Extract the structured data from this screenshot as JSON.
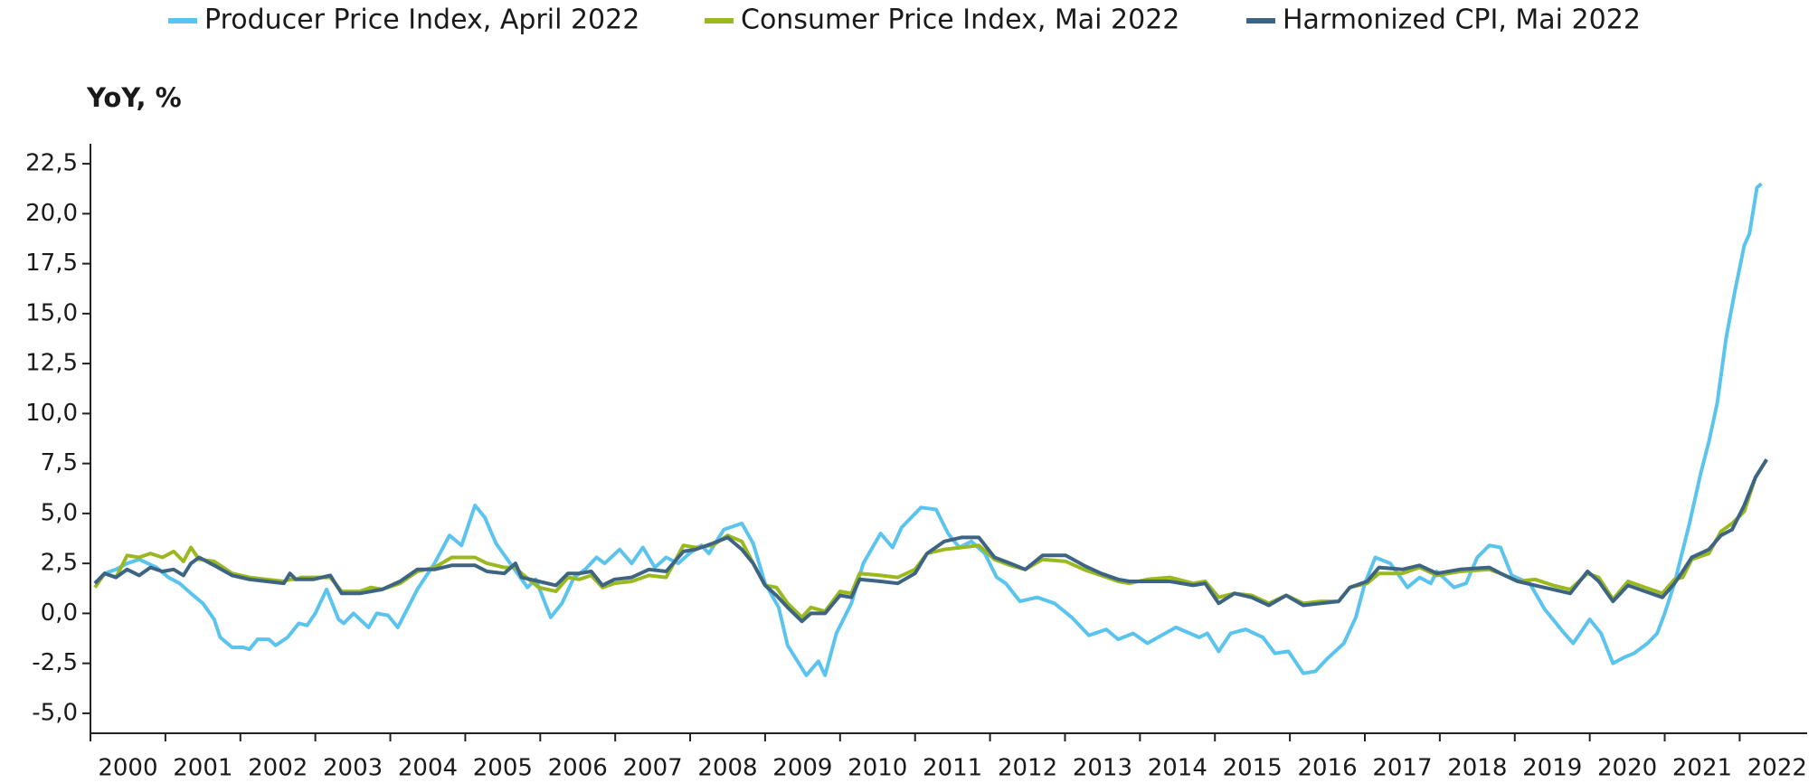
{
  "chart_data": {
    "type": "line",
    "y_axis_label": "YoY, %",
    "categories": [
      "2000",
      "2001",
      "2002",
      "2003",
      "2004",
      "2005",
      "2006",
      "2007",
      "2008",
      "2009",
      "2010",
      "2011",
      "2012",
      "2013",
      "2014",
      "2015",
      "2016",
      "2017",
      "2018",
      "2019",
      "2020",
      "2021",
      "2022"
    ],
    "xlim": [
      2000,
      2022.9
    ],
    "xticks": [
      2000,
      2001,
      2002,
      2003,
      2004,
      2005,
      2006,
      2007,
      2008,
      2009,
      2010,
      2011,
      2012,
      2013,
      2014,
      2015,
      2016,
      2017,
      2018,
      2019,
      2020,
      2021,
      2022
    ],
    "ylim": [
      -6,
      23.5
    ],
    "yticks": [
      {
        "value": -5,
        "label": "-5,0"
      },
      {
        "value": -2.5,
        "label": "-2,5"
      },
      {
        "value": 0,
        "label": "0,0"
      },
      {
        "value": 2.5,
        "label": "2,5"
      },
      {
        "value": 5,
        "label": "5,0"
      },
      {
        "value": 7.5,
        "label": "7,5"
      },
      {
        "value": 10,
        "label": "10,0"
      },
      {
        "value": 12.5,
        "label": "12,5"
      },
      {
        "value": 15,
        "label": "15,0"
      },
      {
        "value": 17.5,
        "label": "17,5"
      },
      {
        "value": 20,
        "label": "20,0"
      },
      {
        "value": 22.5,
        "label": "22,5"
      }
    ],
    "legend": "top",
    "series": [
      {
        "name": "Producer Price Index, April 2022",
        "color": "#5bc4ee",
        "x": [
          2000.06,
          2000.19,
          2000.34,
          2000.49,
          2000.65,
          2000.88,
          2001.04,
          2001.19,
          2001.34,
          2001.5,
          2001.65,
          2001.73,
          2001.89,
          2002.04,
          2002.12,
          2002.23,
          2002.38,
          2002.47,
          2002.63,
          2002.78,
          2002.89,
          2003.0,
          2003.15,
          2003.31,
          2003.38,
          2003.51,
          2003.71,
          2003.82,
          2003.97,
          2004.1,
          2004.36,
          2004.59,
          2004.79,
          2004.95,
          2005.13,
          2005.26,
          2005.41,
          2005.6,
          2005.83,
          2005.94,
          2006.14,
          2006.29,
          2006.45,
          2006.6,
          2006.75,
          2006.86,
          2007.06,
          2007.22,
          2007.37,
          2007.53,
          2007.68,
          2007.84,
          2007.99,
          2008.15,
          2008.25,
          2008.45,
          2008.69,
          2008.84,
          2009.0,
          2009.18,
          2009.3,
          2009.55,
          2009.71,
          2009.8,
          2009.95,
          2010.15,
          2010.31,
          2010.54,
          2010.7,
          2010.82,
          2011.08,
          2011.28,
          2011.44,
          2011.59,
          2011.75,
          2011.93,
          2012.09,
          2012.21,
          2012.4,
          2012.63,
          2012.86,
          2013.09,
          2013.32,
          2013.55,
          2013.71,
          2013.91,
          2014.1,
          2014.48,
          2014.79,
          2014.9,
          2015.05,
          2015.21,
          2015.41,
          2015.64,
          2015.8,
          2015.98,
          2016.18,
          2016.34,
          2016.49,
          2016.72,
          2016.88,
          2017.0,
          2017.14,
          2017.34,
          2017.57,
          2017.73,
          2017.88,
          2017.96,
          2018.19,
          2018.35,
          2018.5,
          2018.66,
          2018.81,
          2018.96,
          2019.2,
          2019.4,
          2019.51,
          2019.66,
          2019.78,
          2020.0,
          2020.15,
          2020.31,
          2020.46,
          2020.59,
          2020.77,
          2020.9,
          2021.0,
          2021.13,
          2021.33,
          2021.48,
          2021.59,
          2021.7,
          2021.82,
          2021.93,
          2022.06,
          2022.13,
          2022.23,
          2022.29
        ],
        "values": [
          1.5,
          2.0,
          2.2,
          2.5,
          2.7,
          2.3,
          1.8,
          1.5,
          1.0,
          0.5,
          -0.3,
          -1.2,
          -1.7,
          -1.7,
          -1.8,
          -1.3,
          -1.3,
          -1.6,
          -1.2,
          -0.5,
          -0.6,
          0.0,
          1.2,
          -0.3,
          -0.5,
          0.0,
          -0.7,
          0.0,
          -0.1,
          -0.7,
          1.2,
          2.5,
          3.9,
          3.4,
          5.4,
          4.8,
          3.5,
          2.5,
          1.3,
          1.7,
          -0.2,
          0.5,
          1.8,
          2.2,
          2.8,
          2.5,
          3.2,
          2.5,
          3.3,
          2.3,
          2.8,
          2.5,
          3.0,
          3.4,
          3.0,
          4.2,
          4.5,
          3.5,
          1.5,
          0.3,
          -1.6,
          -3.1,
          -2.4,
          -3.1,
          -1.0,
          0.5,
          2.5,
          4.0,
          3.3,
          4.3,
          5.3,
          5.2,
          4.0,
          3.3,
          3.6,
          3.0,
          1.8,
          1.5,
          0.6,
          0.8,
          0.5,
          -0.2,
          -1.1,
          -0.8,
          -1.3,
          -1.0,
          -1.5,
          -0.7,
          -1.2,
          -1.0,
          -1.9,
          -1.0,
          -0.8,
          -1.2,
          -2.0,
          -1.9,
          -3.0,
          -2.9,
          -2.3,
          -1.5,
          -0.2,
          1.5,
          2.8,
          2.5,
          1.3,
          1.8,
          1.5,
          2.1,
          1.3,
          1.5,
          2.8,
          3.4,
          3.3,
          1.9,
          1.5,
          0.2,
          -0.3,
          -1.0,
          -1.5,
          -0.3,
          -1.0,
          -2.5,
          -2.2,
          -2.0,
          -1.5,
          -1.0,
          0.0,
          1.5,
          4.5,
          7.0,
          8.6,
          10.5,
          13.8,
          16.0,
          18.4,
          19.0,
          21.3,
          21.5
        ]
      },
      {
        "name": "Consumer Price Index, Mai 2022",
        "color": "#9ab91f",
        "x": [
          2000.06,
          2000.19,
          2000.34,
          2000.49,
          2000.65,
          2000.8,
          2000.96,
          2001.11,
          2001.24,
          2001.34,
          2001.45,
          2001.65,
          2001.89,
          2002.12,
          2002.35,
          2002.58,
          2002.66,
          2002.74,
          2002.81,
          2002.97,
          2003.2,
          2003.35,
          2003.59,
          2003.74,
          2003.89,
          2004.13,
          2004.36,
          2004.59,
          2004.82,
          2005.13,
          2005.29,
          2005.52,
          2005.67,
          2005.75,
          2005.98,
          2006.21,
          2006.37,
          2006.52,
          2006.68,
          2006.83,
          2006.99,
          2007.22,
          2007.45,
          2007.68,
          2007.91,
          2008.07,
          2008.3,
          2008.5,
          2008.69,
          2008.84,
          2009.0,
          2009.15,
          2009.3,
          2009.49,
          2009.61,
          2009.8,
          2010.0,
          2010.15,
          2010.26,
          2010.54,
          2010.77,
          2011.0,
          2011.16,
          2011.39,
          2011.62,
          2011.85,
          2012.06,
          2012.27,
          2012.47,
          2012.7,
          2013.01,
          2013.25,
          2013.48,
          2013.71,
          2013.86,
          2014.1,
          2014.4,
          2014.71,
          2014.87,
          2015.05,
          2015.26,
          2015.49,
          2015.72,
          2015.95,
          2016.18,
          2016.41,
          2016.65,
          2016.8,
          2017.03,
          2017.19,
          2017.5,
          2017.73,
          2017.96,
          2018.27,
          2018.66,
          2018.81,
          2019.04,
          2019.27,
          2019.51,
          2019.74,
          2019.97,
          2020.12,
          2020.31,
          2020.51,
          2020.74,
          2020.97,
          2021.13,
          2021.24,
          2021.36,
          2021.59,
          2021.75,
          2021.9,
          2022.06,
          2022.21,
          2022.36
        ],
        "values": [
          1.3,
          2.0,
          1.8,
          2.9,
          2.8,
          3.0,
          2.8,
          3.1,
          2.6,
          3.3,
          2.7,
          2.6,
          2.0,
          1.8,
          1.7,
          1.6,
          1.7,
          1.7,
          1.8,
          1.8,
          1.8,
          1.1,
          1.1,
          1.3,
          1.2,
          1.5,
          2.1,
          2.3,
          2.8,
          2.8,
          2.5,
          2.3,
          2.3,
          2.0,
          1.3,
          1.1,
          1.8,
          1.7,
          1.9,
          1.3,
          1.5,
          1.6,
          1.9,
          1.8,
          3.4,
          3.3,
          3.4,
          3.9,
          3.6,
          2.5,
          1.4,
          1.3,
          0.5,
          -0.2,
          0.3,
          0.1,
          1.1,
          1.0,
          2.0,
          1.9,
          1.8,
          2.2,
          3.0,
          3.2,
          3.3,
          3.4,
          2.7,
          2.4,
          2.2,
          2.7,
          2.6,
          2.2,
          1.9,
          1.6,
          1.5,
          1.7,
          1.8,
          1.5,
          1.6,
          0.8,
          1.0,
          0.9,
          0.5,
          0.9,
          0.5,
          0.6,
          0.6,
          1.3,
          1.5,
          2.0,
          2.0,
          2.3,
          1.9,
          2.1,
          2.2,
          2.0,
          1.6,
          1.7,
          1.4,
          1.2,
          2.0,
          1.8,
          0.7,
          1.6,
          1.3,
          1.0,
          1.7,
          1.8,
          2.7,
          3.0,
          4.1,
          4.5,
          5.1,
          6.8,
          7.7
        ]
      },
      {
        "name": "Harmonized CPI, Mai 2022",
        "color": "#3d6483",
        "x": [
          2000.06,
          2000.19,
          2000.34,
          2000.49,
          2000.65,
          2000.8,
          2000.96,
          2001.11,
          2001.24,
          2001.34,
          2001.45,
          2001.65,
          2001.89,
          2002.12,
          2002.35,
          2002.58,
          2002.66,
          2002.74,
          2002.81,
          2002.97,
          2003.2,
          2003.35,
          2003.59,
          2003.74,
          2003.89,
          2004.13,
          2004.36,
          2004.59,
          2004.82,
          2005.13,
          2005.29,
          2005.52,
          2005.67,
          2005.75,
          2005.98,
          2006.21,
          2006.37,
          2006.52,
          2006.68,
          2006.83,
          2006.99,
          2007.22,
          2007.45,
          2007.68,
          2007.91,
          2008.07,
          2008.3,
          2008.5,
          2008.69,
          2008.84,
          2009.0,
          2009.15,
          2009.3,
          2009.49,
          2009.61,
          2009.8,
          2010.0,
          2010.15,
          2010.26,
          2010.54,
          2010.77,
          2011.0,
          2011.16,
          2011.39,
          2011.62,
          2011.85,
          2012.06,
          2012.27,
          2012.47,
          2012.7,
          2013.01,
          2013.25,
          2013.48,
          2013.71,
          2013.86,
          2014.1,
          2014.4,
          2014.71,
          2014.87,
          2015.05,
          2015.26,
          2015.49,
          2015.72,
          2015.95,
          2016.18,
          2016.41,
          2016.65,
          2016.8,
          2017.03,
          2017.19,
          2017.5,
          2017.73,
          2017.96,
          2018.27,
          2018.66,
          2018.81,
          2019.04,
          2019.27,
          2019.51,
          2019.74,
          2019.97,
          2020.12,
          2020.31,
          2020.51,
          2020.74,
          2020.97,
          2021.13,
          2021.24,
          2021.36,
          2021.59,
          2021.75,
          2021.9,
          2022.06,
          2022.21,
          2022.36
        ],
        "values": [
          1.5,
          2.0,
          1.8,
          2.2,
          1.9,
          2.3,
          2.1,
          2.2,
          1.9,
          2.5,
          2.8,
          2.4,
          1.9,
          1.7,
          1.6,
          1.5,
          2.0,
          1.7,
          1.7,
          1.7,
          1.9,
          1.0,
          1.0,
          1.1,
          1.2,
          1.6,
          2.2,
          2.2,
          2.4,
          2.4,
          2.1,
          2.0,
          2.5,
          1.8,
          1.6,
          1.4,
          2.0,
          2.0,
          2.1,
          1.4,
          1.7,
          1.8,
          2.2,
          2.1,
          3.1,
          3.2,
          3.5,
          3.8,
          3.2,
          2.5,
          1.4,
          0.9,
          0.3,
          -0.4,
          0.0,
          0.0,
          0.9,
          0.8,
          1.7,
          1.6,
          1.5,
          2.0,
          3.0,
          3.6,
          3.8,
          3.8,
          2.8,
          2.5,
          2.2,
          2.9,
          2.9,
          2.4,
          2.0,
          1.7,
          1.6,
          1.6,
          1.6,
          1.4,
          1.5,
          0.5,
          1.0,
          0.8,
          0.4,
          0.9,
          0.4,
          0.5,
          0.6,
          1.3,
          1.6,
          2.3,
          2.2,
          2.4,
          2.0,
          2.2,
          2.3,
          2.0,
          1.6,
          1.4,
          1.2,
          1.0,
          2.1,
          1.6,
          0.6,
          1.4,
          1.1,
          0.8,
          1.5,
          2.1,
          2.8,
          3.2,
          3.9,
          4.2,
          5.4,
          6.8,
          7.7
        ]
      }
    ]
  }
}
